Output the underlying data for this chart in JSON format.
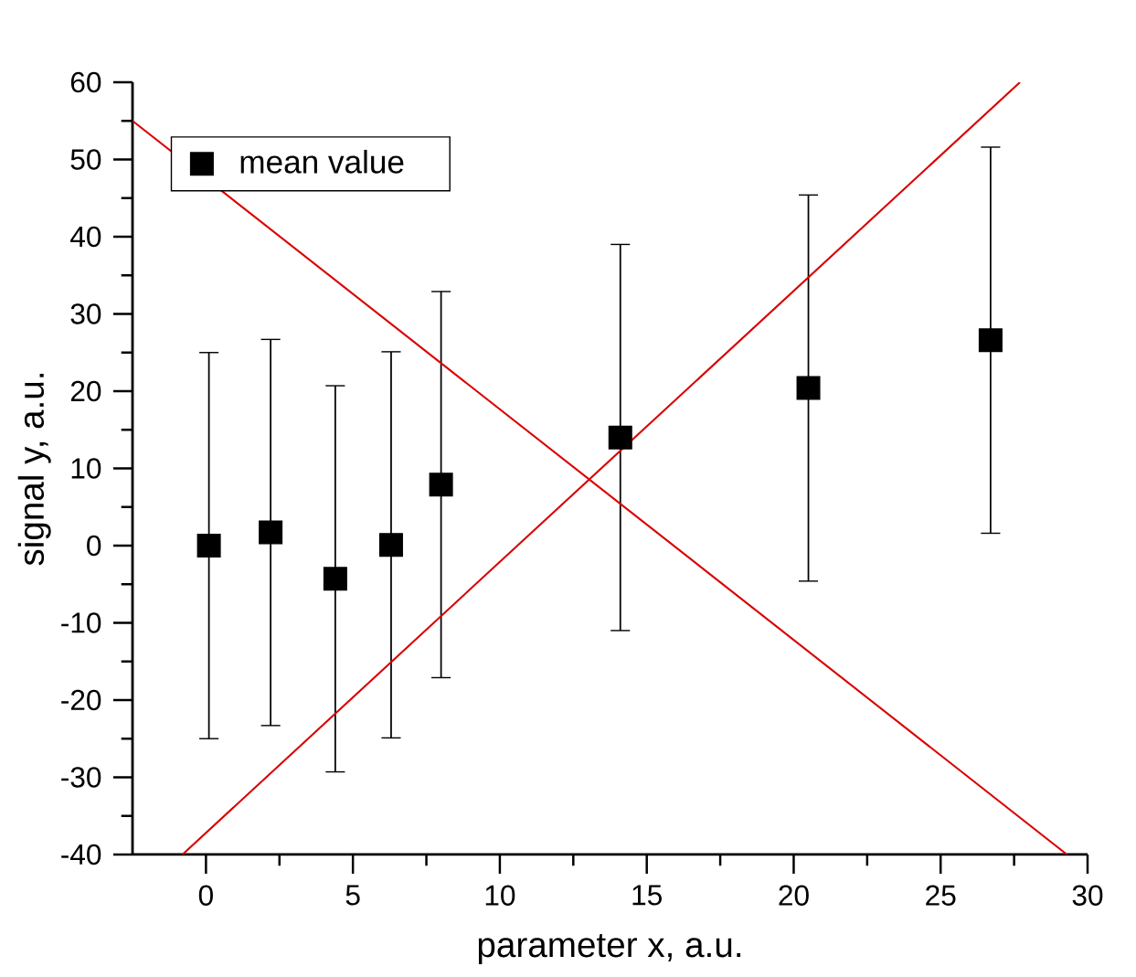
{
  "chart_data": {
    "type": "scatter",
    "xlabel": "parameter x, a.u.",
    "ylabel": "signal y, a.u.",
    "x": [
      0.1,
      2.2,
      4.4,
      6.3,
      8.0,
      14.1,
      20.5,
      26.7
    ],
    "series": [
      {
        "name": "mean value",
        "color": "#000000",
        "values": [
          0.0,
          1.7,
          -4.3,
          0.1,
          7.9,
          14.0,
          20.4,
          26.6
        ],
        "errors": [
          25,
          25,
          25,
          25,
          25,
          25,
          25,
          25
        ]
      },
      {
        "type": "line",
        "color": "#d90000",
        "marker": "none",
        "x": [
          -2.5,
          29.3
        ],
        "values": [
          55,
          -40
        ]
      },
      {
        "type": "line",
        "color": "#d90000",
        "marker": "none",
        "x": [
          -0.8,
          27.7
        ],
        "values": [
          -40,
          60
        ]
      }
    ],
    "marker": "square",
    "legend": "top left",
    "grid": false,
    "xlim": [
      -2.5,
      30
    ],
    "ylim": [
      -40,
      60
    ],
    "xticks": [
      0,
      5,
      10,
      15,
      20,
      25,
      30
    ],
    "yticks": [
      -40,
      -30,
      -20,
      -10,
      0,
      10,
      20,
      30,
      40,
      50,
      60
    ]
  }
}
